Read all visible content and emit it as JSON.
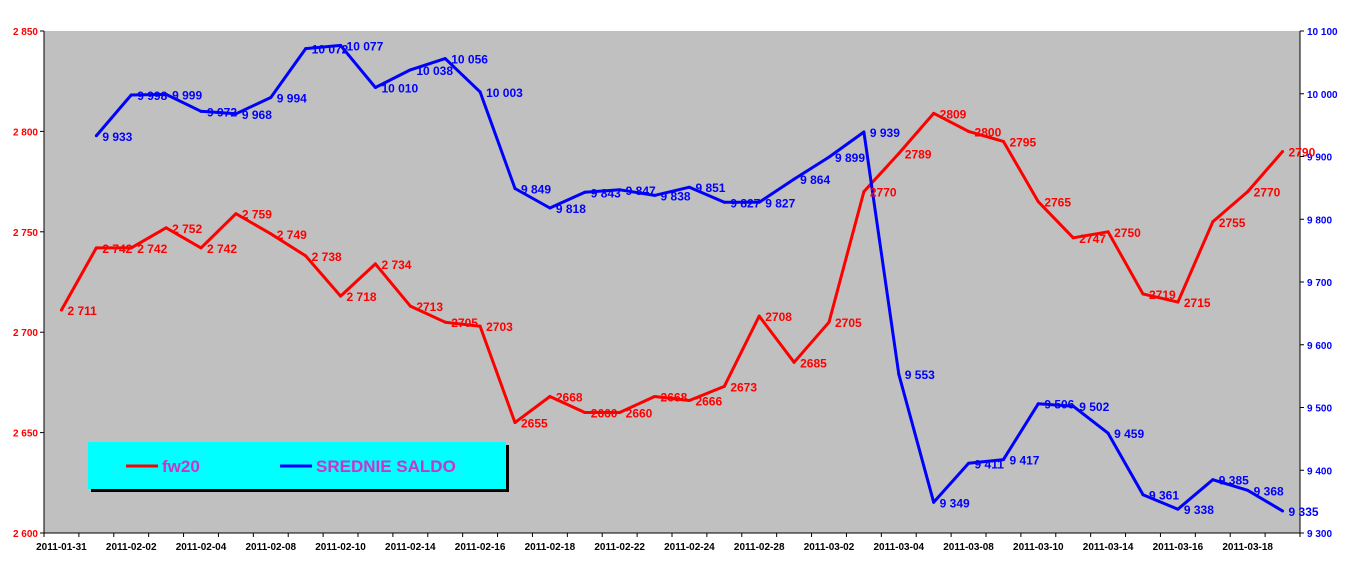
{
  "chart_data": {
    "type": "line",
    "title": "",
    "xlabel": "",
    "ylabel": "",
    "grid": false,
    "legend_position": "bottom-left",
    "colors": {
      "plot_bg": "#c0c0c0",
      "legend_bg": "#00ffff",
      "legend_text": "#cc33cc",
      "fw20": "#ff0000",
      "saldo": "#0000ff",
      "left_axis": "#ff0000",
      "right_axis": "#0000ff"
    },
    "x_tick_labels": [
      "2011-01-31",
      "2011-02-02",
      "2011-02-04",
      "2011-02-08",
      "2011-02-10",
      "2011-02-14",
      "2011-02-16",
      "2011-02-18",
      "2011-02-22",
      "2011-02-24",
      "2011-02-28",
      "2011-03-02",
      "2011-03-04",
      "2011-03-08",
      "2011-03-10",
      "2011-03-14",
      "2011-03-16",
      "2011-03-18"
    ],
    "y_left": {
      "min": 2600,
      "max": 2850,
      "ticks": [
        "2 600",
        "2 650",
        "2 700",
        "2 750",
        "2 800",
        "2 850"
      ]
    },
    "y_right": {
      "min": 9300,
      "max": 10100,
      "ticks": [
        "9 300",
        "9 400",
        "9 500",
        "9 600",
        "9 700",
        "9 800",
        "9 900",
        "10 000",
        "10 100"
      ]
    },
    "series": [
      {
        "name": "fw20",
        "axis": "left",
        "values": [
          2711,
          2742,
          2742,
          2752,
          2742,
          2759,
          2749,
          2738,
          2718,
          2734,
          2713,
          2705,
          2703,
          2655,
          2668,
          2660,
          2660,
          2668,
          2666,
          2673,
          2708,
          2685,
          2705,
          2770,
          2789,
          2809,
          2800,
          2795,
          2765,
          2747,
          2750,
          2719,
          2715,
          2755,
          2770,
          2790
        ],
        "labels": [
          "2 711",
          "2 742",
          "2 742",
          "2 752",
          "2 742",
          "2 759",
          "2 749",
          "2 738",
          "2 718",
          "2 734",
          "2713",
          "2705",
          "2703",
          "2655",
          "2668",
          "2660",
          "2660",
          "2668",
          "2666",
          "2673",
          "2708",
          "2685",
          "2705",
          "2770",
          "2789",
          "2809",
          "2800",
          "2795",
          "2765",
          "2747",
          "2750",
          "2719",
          "2715",
          "2755",
          "2770",
          "2790"
        ]
      },
      {
        "name": "SREDNIE SALDO",
        "axis": "right",
        "values": [
          null,
          9933,
          9998,
          9999,
          9972,
          9968,
          9994,
          10072,
          10077,
          10010,
          10038,
          10056,
          10003,
          9849,
          9818,
          9843,
          9847,
          9838,
          9851,
          9827,
          9827,
          9864,
          9899,
          9939,
          9553,
          9349,
          9411,
          9417,
          9506,
          9502,
          9459,
          9361,
          9338,
          9385,
          9368,
          9335
        ],
        "labels": [
          "",
          "9 933",
          "9 998",
          "9 999",
          "9 972",
          "9 968",
          "9 994",
          "10 072",
          "10 077",
          "10 010",
          "10 038",
          "10 056",
          "10 003",
          "9 849",
          "9 818",
          "9 843",
          "9 847",
          "9 838",
          "9 851",
          "9 827",
          "9 827",
          "9 864",
          "9 899",
          "9 939",
          "9 553",
          "9 349",
          "9 411",
          "9 417",
          "9 506",
          "9 502",
          "9 459",
          "9 361",
          "9 338",
          "9 385",
          "9 368",
          "9 335"
        ]
      }
    ]
  }
}
